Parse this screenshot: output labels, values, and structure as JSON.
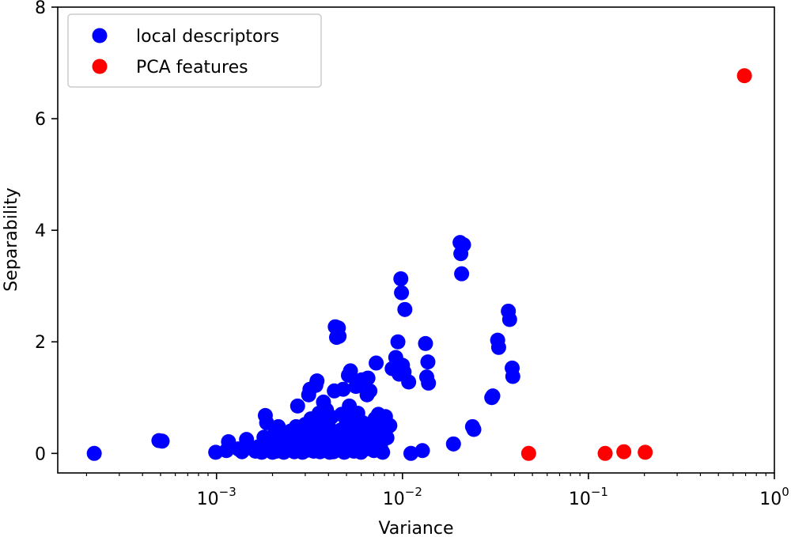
{
  "chart_data": {
    "type": "scatter",
    "title": "",
    "xlabel": "Variance",
    "ylabel": "Separability",
    "xscale": "log",
    "xlim": [
      0.00014,
      1.0
    ],
    "ylim": [
      -0.35,
      8
    ],
    "grid": false,
    "legend_position": "top-left",
    "x_ticks": [
      {
        "value": 0.001,
        "base": "10",
        "exp": "−3"
      },
      {
        "value": 0.01,
        "base": "10",
        "exp": "−2"
      },
      {
        "value": 0.1,
        "base": "10",
        "exp": "−1"
      },
      {
        "value": 1,
        "base": "10",
        "exp": "0"
      }
    ],
    "y_ticks": [
      0,
      2,
      4,
      6,
      8
    ],
    "series": [
      {
        "name": "local descriptors",
        "color": "#0000ff",
        "points": [
          [
            0.00022,
            0.0
          ],
          [
            0.00049,
            0.23
          ],
          [
            0.00051,
            0.22
          ],
          [
            0.00099,
            0.02
          ],
          [
            0.00113,
            0.05
          ],
          [
            0.00116,
            0.21
          ],
          [
            0.00131,
            0.08
          ],
          [
            0.00137,
            0.03
          ],
          [
            0.00145,
            0.25
          ],
          [
            0.00148,
            0.1
          ],
          [
            0.00162,
            0.04
          ],
          [
            0.00168,
            0.12
          ],
          [
            0.00175,
            0.02
          ],
          [
            0.0018,
            0.29
          ],
          [
            0.00183,
            0.68
          ],
          [
            0.00186,
            0.55
          ],
          [
            0.00191,
            0.07
          ],
          [
            0.00197,
            0.18
          ],
          [
            0.002,
            0.02
          ],
          [
            0.00205,
            0.35
          ],
          [
            0.0021,
            0.04
          ],
          [
            0.00215,
            0.48
          ],
          [
            0.0022,
            0.11
          ],
          [
            0.00225,
            0.29
          ],
          [
            0.0023,
            0.02
          ],
          [
            0.00237,
            0.22
          ],
          [
            0.00243,
            0.06
          ],
          [
            0.0025,
            0.4
          ],
          [
            0.00257,
            0.15
          ],
          [
            0.00262,
            0.03
          ],
          [
            0.00268,
            0.48
          ],
          [
            0.00273,
            0.85
          ],
          [
            0.00278,
            0.26
          ],
          [
            0.00282,
            0.09
          ],
          [
            0.0029,
            0.02
          ],
          [
            0.00296,
            0.35
          ],
          [
            0.003,
            0.52
          ],
          [
            0.00305,
            0.18
          ],
          [
            0.0031,
            0.06
          ],
          [
            0.00313,
            1.05
          ],
          [
            0.00318,
            1.15
          ],
          [
            0.00322,
            0.62
          ],
          [
            0.00328,
            0.27
          ],
          [
            0.00333,
            0.04
          ],
          [
            0.00337,
            0.42
          ],
          [
            0.00342,
            1.22
          ],
          [
            0.00347,
            1.3
          ],
          [
            0.0035,
            0.16
          ],
          [
            0.00356,
            0.72
          ],
          [
            0.0036,
            0.03
          ],
          [
            0.00365,
            0.34
          ],
          [
            0.0037,
            0.55
          ],
          [
            0.00376,
            0.92
          ],
          [
            0.0038,
            0.05
          ],
          [
            0.00386,
            0.22
          ],
          [
            0.0039,
            0.78
          ],
          [
            0.00396,
            0.1
          ],
          [
            0.004,
            0.48
          ],
          [
            0.00406,
            0.02
          ],
          [
            0.0041,
            0.35
          ],
          [
            0.00415,
            0.65
          ],
          [
            0.0042,
            0.18
          ],
          [
            0.00426,
            0.03
          ],
          [
            0.0043,
            1.12
          ],
          [
            0.00435,
            2.27
          ],
          [
            0.00442,
            2.08
          ],
          [
            0.00448,
            0.28
          ],
          [
            0.00452,
            2.25
          ],
          [
            0.00456,
            2.1
          ],
          [
            0.0046,
            0.06
          ],
          [
            0.00466,
            0.42
          ],
          [
            0.0047,
            0.7
          ],
          [
            0.00475,
            0.15
          ],
          [
            0.0048,
            1.15
          ],
          [
            0.00486,
            0.02
          ],
          [
            0.00492,
            0.25
          ],
          [
            0.005,
            0.55
          ],
          [
            0.00507,
            0.32
          ],
          [
            0.00512,
            1.4
          ],
          [
            0.00518,
            0.85
          ],
          [
            0.00525,
            1.48
          ],
          [
            0.0053,
            0.12
          ],
          [
            0.00536,
            0.62
          ],
          [
            0.00542,
            0.36
          ],
          [
            0.00548,
            0.04
          ],
          [
            0.00555,
            0.48
          ],
          [
            0.00562,
            1.2
          ],
          [
            0.00568,
            0.22
          ],
          [
            0.00575,
            0.72
          ],
          [
            0.00582,
            0.08
          ],
          [
            0.0059,
            0.36
          ],
          [
            0.00598,
            0.02
          ],
          [
            0.00605,
            1.32
          ],
          [
            0.00612,
            0.55
          ],
          [
            0.0062,
            0.18
          ],
          [
            0.00628,
            0.42
          ],
          [
            0.00636,
            0.08
          ],
          [
            0.00645,
            1.05
          ],
          [
            0.00652,
            1.35
          ],
          [
            0.0066,
            0.28
          ],
          [
            0.00668,
            1.12
          ],
          [
            0.00676,
            0.45
          ],
          [
            0.00685,
            0.15
          ],
          [
            0.00694,
            0.38
          ],
          [
            0.00702,
            0.05
          ],
          [
            0.00712,
            0.62
          ],
          [
            0.00722,
            1.62
          ],
          [
            0.00732,
            0.22
          ],
          [
            0.00742,
            0.7
          ],
          [
            0.00752,
            0.4
          ],
          [
            0.00762,
            0.12
          ],
          [
            0.00772,
            0.58
          ],
          [
            0.00782,
            0.02
          ],
          [
            0.00795,
            0.32
          ],
          [
            0.0081,
            0.66
          ],
          [
            0.00825,
            0.28
          ],
          [
            0.0084,
            0.48
          ],
          [
            0.00855,
            0.5
          ],
          [
            0.0088,
            1.52
          ],
          [
            0.0092,
            1.72
          ],
          [
            0.00945,
            2.0
          ],
          [
            0.0096,
            1.42
          ],
          [
            0.0098,
            3.13
          ],
          [
            0.00988,
            2.88
          ],
          [
            0.01,
            1.58
          ],
          [
            0.0102,
            1.46
          ],
          [
            0.0103,
            2.58
          ],
          [
            0.0108,
            1.28
          ],
          [
            0.0111,
            0.0
          ],
          [
            0.0128,
            0.05
          ],
          [
            0.0133,
            1.97
          ],
          [
            0.0135,
            1.37
          ],
          [
            0.0137,
            1.64
          ],
          [
            0.0138,
            1.26
          ],
          [
            0.0188,
            0.17
          ],
          [
            0.0204,
            3.78
          ],
          [
            0.0206,
            3.58
          ],
          [
            0.0208,
            3.22
          ],
          [
            0.0213,
            3.74
          ],
          [
            0.0238,
            0.48
          ],
          [
            0.0242,
            0.43
          ],
          [
            0.0302,
            1.0
          ],
          [
            0.0306,
            1.03
          ],
          [
            0.0325,
            2.03
          ],
          [
            0.0329,
            1.9
          ],
          [
            0.0371,
            2.55
          ],
          [
            0.0377,
            2.4
          ],
          [
            0.0389,
            1.53
          ],
          [
            0.0392,
            1.38
          ]
        ]
      },
      {
        "name": "PCA features",
        "color": "#ff0000",
        "points": [
          [
            0.0477,
            0.0
          ],
          [
            0.123,
            0.0
          ],
          [
            0.155,
            0.03
          ],
          [
            0.202,
            0.02
          ],
          [
            0.69,
            6.77
          ]
        ]
      }
    ]
  }
}
